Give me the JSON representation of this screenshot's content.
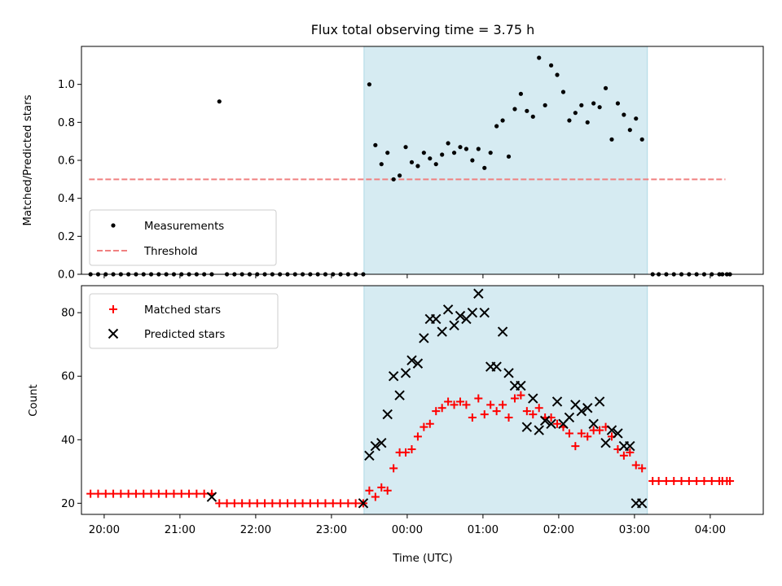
{
  "chart_data": [
    {
      "type": "scatter",
      "title": "Flux total observing time = 3.75 h",
      "ylabel": "Matched/Predicted stars",
      "xlim": [
        -4.3,
        4.7
      ],
      "ylim": [
        0,
        1.2
      ],
      "yticks": [
        0.0,
        0.2,
        0.4,
        0.6,
        0.8,
        1.0
      ],
      "ytick_labels": [
        "0.0",
        "0.2",
        "0.4",
        "0.6",
        "0.8",
        "1.0"
      ],
      "shaded_x": [
        -0.57,
        3.17
      ],
      "threshold": {
        "name": "Threshold",
        "y": 0.5,
        "x": [
          -4.2,
          4.2
        ],
        "color": "#f08080"
      },
      "legend": {
        "placement": "lower-left",
        "items": [
          "Measurements",
          "Threshold"
        ]
      },
      "series": [
        {
          "name": "Measurements",
          "color": "#000000",
          "x": [
            -4.18,
            -4.08,
            -3.98,
            -3.88,
            -3.78,
            -3.68,
            -3.58,
            -3.48,
            -3.38,
            -3.28,
            -3.18,
            -3.08,
            -2.98,
            -2.88,
            -2.78,
            -2.68,
            -2.58,
            -2.48,
            -2.38,
            -2.28,
            -2.18,
            -2.08,
            -1.98,
            -1.88,
            -1.78,
            -1.68,
            -1.58,
            -1.48,
            -1.38,
            -1.28,
            -1.18,
            -1.08,
            -0.98,
            -0.88,
            -0.78,
            -0.68,
            -0.58,
            -0.5,
            -0.42,
            -0.34,
            -0.26,
            -0.18,
            -0.1,
            -0.02,
            0.06,
            0.14,
            0.22,
            0.3,
            0.38,
            0.46,
            0.54,
            0.62,
            0.7,
            0.78,
            0.86,
            0.94,
            1.02,
            1.1,
            1.18,
            1.26,
            1.34,
            1.42,
            1.5,
            1.58,
            1.66,
            1.74,
            1.82,
            1.9,
            1.98,
            2.06,
            2.14,
            2.22,
            2.3,
            2.38,
            2.46,
            2.54,
            2.62,
            2.7,
            2.78,
            2.86,
            2.94,
            3.02,
            3.1,
            3.24,
            3.32,
            3.42,
            3.52,
            3.62,
            3.72,
            3.82,
            3.92,
            4.02,
            4.12,
            4.16,
            4.22,
            4.26
          ],
          "y": [
            0,
            0,
            0,
            0,
            0,
            0,
            0,
            0,
            0,
            0,
            0,
            0,
            0,
            0,
            0,
            0,
            0,
            0.91,
            0,
            0,
            0,
            0,
            0,
            0,
            0,
            0,
            0,
            0,
            0,
            0,
            0,
            0,
            0,
            0,
            0,
            0,
            0,
            1.0,
            0.68,
            0.58,
            0.64,
            0.5,
            0.52,
            0.67,
            0.59,
            0.57,
            0.64,
            0.61,
            0.58,
            0.63,
            0.69,
            0.64,
            0.67,
            0.66,
            0.6,
            0.66,
            0.56,
            0.64,
            0.78,
            0.81,
            0.62,
            0.87,
            0.95,
            0.86,
            0.83,
            1.14,
            0.89,
            1.1,
            1.05,
            0.96,
            0.81,
            0.85,
            0.89,
            0.8,
            0.9,
            0.88,
            0.98,
            0.71,
            0.9,
            0.84,
            0.76,
            0.82,
            0.71,
            0,
            0,
            0,
            0,
            0,
            0,
            0,
            0,
            0,
            0,
            0,
            0,
            0
          ]
        }
      ]
    },
    {
      "type": "scatter",
      "xlabel": "Time (UTC)",
      "ylabel": "Count",
      "xlim": [
        -4.3,
        4.7
      ],
      "ylim": [
        16.5,
        88.5
      ],
      "yticks": [
        20,
        40,
        60,
        80
      ],
      "ytick_labels": [
        "20",
        "40",
        "60",
        "80"
      ],
      "xticks": [
        -4,
        -3,
        -2,
        -1,
        0,
        1,
        2,
        3,
        4
      ],
      "xtick_labels": [
        "20:00",
        "21:00",
        "22:00",
        "23:00",
        "00:00",
        "01:00",
        "02:00",
        "03:00",
        "04:00"
      ],
      "shaded_x": [
        -0.57,
        3.17
      ],
      "legend": {
        "placement": "upper-left",
        "items": [
          "Matched stars",
          "Predicted stars"
        ]
      },
      "series": [
        {
          "name": "Matched stars",
          "color": "#ff0000",
          "marker": "+",
          "x": [
            -4.18,
            -4.08,
            -3.98,
            -3.88,
            -3.78,
            -3.68,
            -3.58,
            -3.48,
            -3.38,
            -3.28,
            -3.18,
            -3.08,
            -2.98,
            -2.88,
            -2.78,
            -2.68,
            -2.58,
            -2.48,
            -2.38,
            -2.28,
            -2.18,
            -2.08,
            -1.98,
            -1.88,
            -1.78,
            -1.68,
            -1.58,
            -1.48,
            -1.38,
            -1.28,
            -1.18,
            -1.08,
            -0.98,
            -0.88,
            -0.78,
            -0.68,
            -0.58,
            -0.5,
            -0.42,
            -0.34,
            -0.26,
            -0.18,
            -0.1,
            -0.02,
            0.06,
            0.14,
            0.22,
            0.3,
            0.38,
            0.46,
            0.54,
            0.62,
            0.7,
            0.78,
            0.86,
            0.94,
            1.02,
            1.1,
            1.18,
            1.26,
            1.34,
            1.42,
            1.5,
            1.58,
            1.66,
            1.74,
            1.82,
            1.9,
            1.98,
            2.06,
            2.14,
            2.22,
            2.3,
            2.38,
            2.46,
            2.54,
            2.62,
            2.7,
            2.78,
            2.86,
            2.94,
            3.02,
            3.1,
            3.24,
            3.32,
            3.42,
            3.52,
            3.62,
            3.72,
            3.82,
            3.92,
            4.02,
            4.12,
            4.16,
            4.22,
            4.26
          ],
          "y": [
            23,
            23,
            23,
            23,
            23,
            23,
            23,
            23,
            23,
            23,
            23,
            23,
            23,
            23,
            23,
            23,
            23,
            20,
            20,
            20,
            20,
            20,
            20,
            20,
            20,
            20,
            20,
            20,
            20,
            20,
            20,
            20,
            20,
            20,
            20,
            20,
            20,
            24,
            22,
            25,
            24,
            31,
            36,
            36,
            37,
            41,
            44,
            45,
            49,
            50,
            52,
            51,
            52,
            51,
            47,
            53,
            48,
            51,
            49,
            51,
            47,
            53,
            54,
            49,
            48,
            50,
            47,
            47,
            45,
            44,
            42,
            38,
            42,
            41,
            43,
            43,
            44,
            41,
            37,
            35,
            36,
            32,
            31,
            27,
            27,
            27,
            27,
            27,
            27,
            27,
            27,
            27,
            27,
            27,
            27,
            27
          ]
        },
        {
          "name": "Predicted stars",
          "color": "#000000",
          "marker": "x",
          "x": [
            -2.58,
            -0.58,
            -0.5,
            -0.42,
            -0.34,
            -0.26,
            -0.18,
            -0.1,
            -0.02,
            0.06,
            0.14,
            0.22,
            0.3,
            0.38,
            0.46,
            0.54,
            0.62,
            0.7,
            0.78,
            0.86,
            0.94,
            1.02,
            1.1,
            1.18,
            1.26,
            1.34,
            1.42,
            1.5,
            1.58,
            1.66,
            1.74,
            1.82,
            1.9,
            1.98,
            2.06,
            2.14,
            2.22,
            2.3,
            2.38,
            2.46,
            2.54,
            2.62,
            2.7,
            2.78,
            2.86,
            2.94,
            3.02,
            3.1
          ],
          "y": [
            22,
            20,
            35,
            38,
            39,
            48,
            60,
            54,
            61,
            65,
            64,
            72,
            78,
            78,
            74,
            81,
            76,
            79,
            78,
            80,
            86,
            80,
            63,
            63,
            74,
            61,
            57,
            57,
            44,
            53,
            43,
            46,
            45,
            52,
            45,
            47,
            51,
            49,
            50,
            45,
            52,
            39,
            43,
            42,
            38,
            38,
            20,
            20
          ]
        }
      ]
    }
  ]
}
